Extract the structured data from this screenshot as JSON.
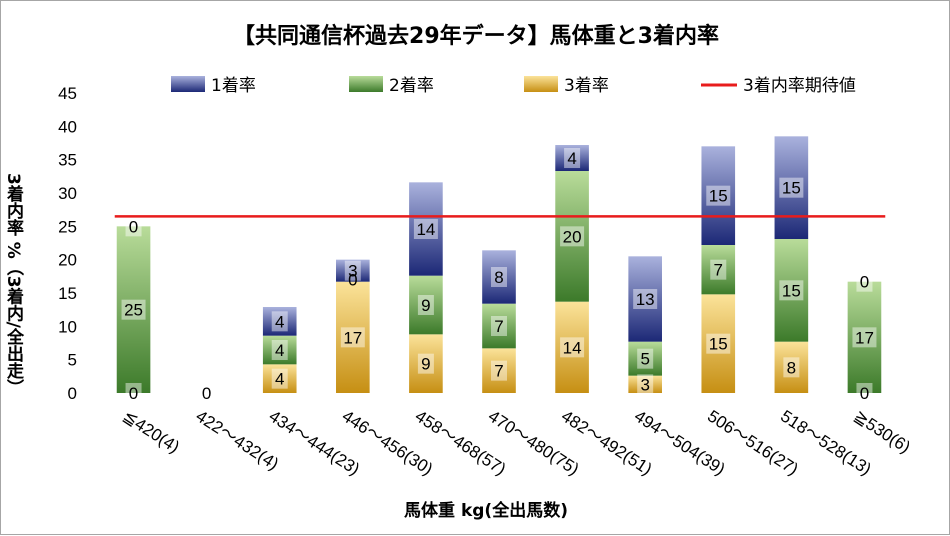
{
  "chart_data": {
    "type": "bar",
    "stacked": true,
    "title": "【共同通信杯過去29年データ】馬体重と3着内率",
    "xlabel": "馬体重 kg(全出馬数)",
    "ylabel": "3着内率 %（3着内/全出走）",
    "ylim": [
      0,
      45
    ],
    "yticks": [
      0,
      5,
      10,
      15,
      20,
      25,
      30,
      35,
      40,
      45
    ],
    "grid": false,
    "legend_position": "top",
    "categories": [
      "≦420(4)",
      "422～432(4)",
      "434～444(23)",
      "446～456(30)",
      "458～468(57)",
      "470～480(75)",
      "482～492(51)",
      "494～504(39)",
      "506～516(27)",
      "518～528(13)",
      "≧530(6)"
    ],
    "series": [
      {
        "name": "3着率",
        "color": "#d9a520",
        "values": [
          0,
          0,
          4.3,
          16.7,
          8.8,
          6.7,
          13.7,
          2.6,
          14.8,
          7.7,
          0
        ],
        "labels": [
          "0",
          "",
          "4",
          "17",
          "9",
          "7",
          "14",
          "3",
          "15",
          "8",
          "0"
        ]
      },
      {
        "name": "2着率",
        "color": "#5f9a3c",
        "values": [
          25,
          0,
          4.3,
          0,
          8.8,
          6.7,
          19.6,
          5.1,
          7.4,
          15.4,
          16.7
        ],
        "labels": [
          "25",
          "",
          "4",
          "",
          "9",
          "7",
          "20",
          "5",
          "7",
          "15",
          "17"
        ]
      },
      {
        "name": "1着率",
        "color": "#3a4a99",
        "values": [
          0,
          0,
          4.3,
          3.3,
          14.0,
          8.0,
          3.9,
          12.8,
          14.8,
          15.4,
          0
        ],
        "labels": [
          "0",
          "0",
          "4",
          "3",
          "14",
          "8",
          "4",
          "13",
          "15",
          "15",
          "0"
        ]
      }
    ],
    "line": {
      "name": "3着内率期待値",
      "color": "#e81c1c",
      "value": 26.5
    },
    "extra_labels": [
      {
        "category_index": 3,
        "text": "0"
      }
    ]
  }
}
